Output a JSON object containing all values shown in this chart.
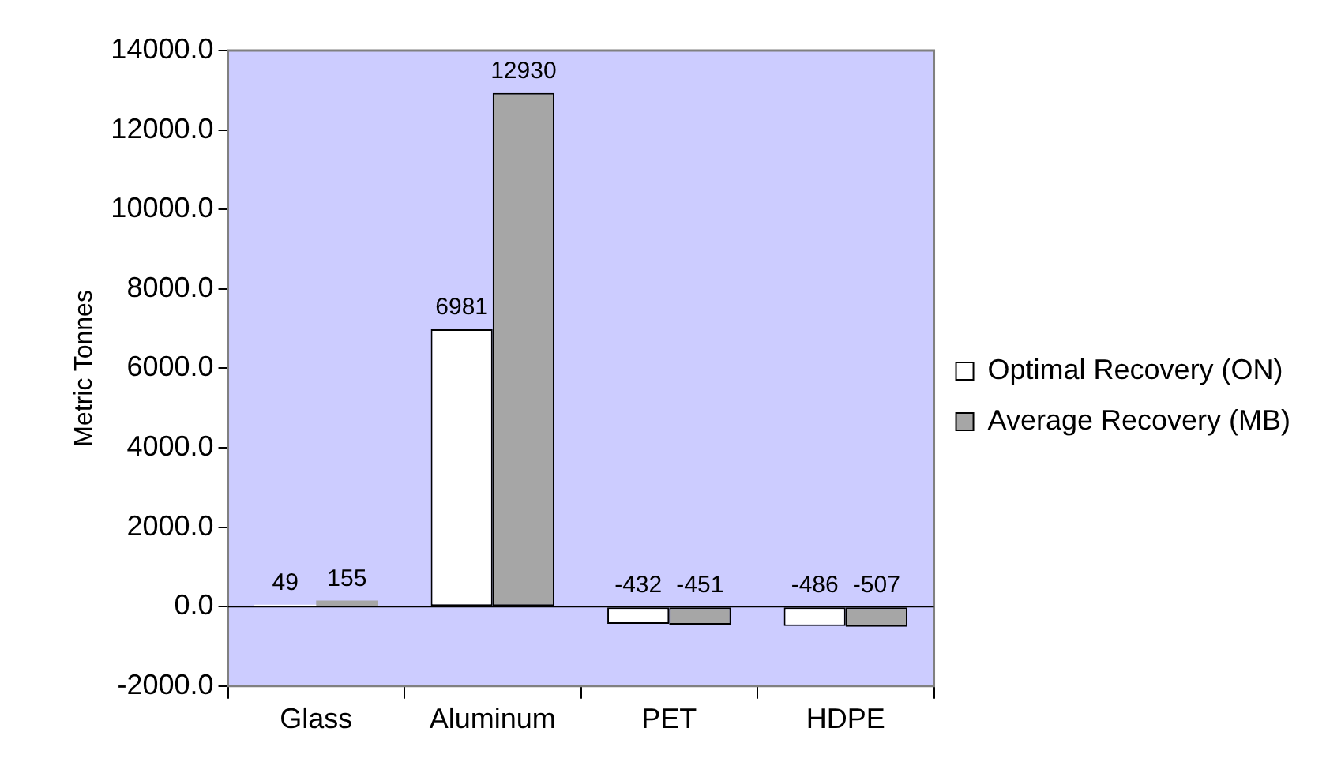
{
  "chart_data": {
    "type": "bar",
    "categories": [
      "Glass",
      "Aluminum",
      "PET",
      "HDPE"
    ],
    "series": [
      {
        "name": "Optimal Recovery (ON)",
        "color": "#ffffff",
        "values": [
          49,
          6981,
          -432,
          -486
        ]
      },
      {
        "name": "Average Recovery (MB)",
        "color": "#a6a6a6",
        "values": [
          155,
          12930,
          -451,
          -507
        ]
      }
    ],
    "ylabel": "Metric Tonnes",
    "ylim": [
      -2000,
      14000
    ],
    "yticks": [
      {
        "value": -2000,
        "label": "-2000.0"
      },
      {
        "value": 0,
        "label": "0.0"
      },
      {
        "value": 2000,
        "label": "2000.0"
      },
      {
        "value": 4000,
        "label": "4000.0"
      },
      {
        "value": 6000,
        "label": "6000.0"
      },
      {
        "value": 8000,
        "label": "8000.0"
      },
      {
        "value": 10000,
        "label": "10000.0"
      },
      {
        "value": 12000,
        "label": "12000.0"
      },
      {
        "value": 14000,
        "label": "14000.0"
      }
    ],
    "ref_lines": [
      {
        "axis": "y",
        "value": 0,
        "color": "#000000"
      }
    ],
    "data_labels": true,
    "legend": "right",
    "grid": false
  }
}
